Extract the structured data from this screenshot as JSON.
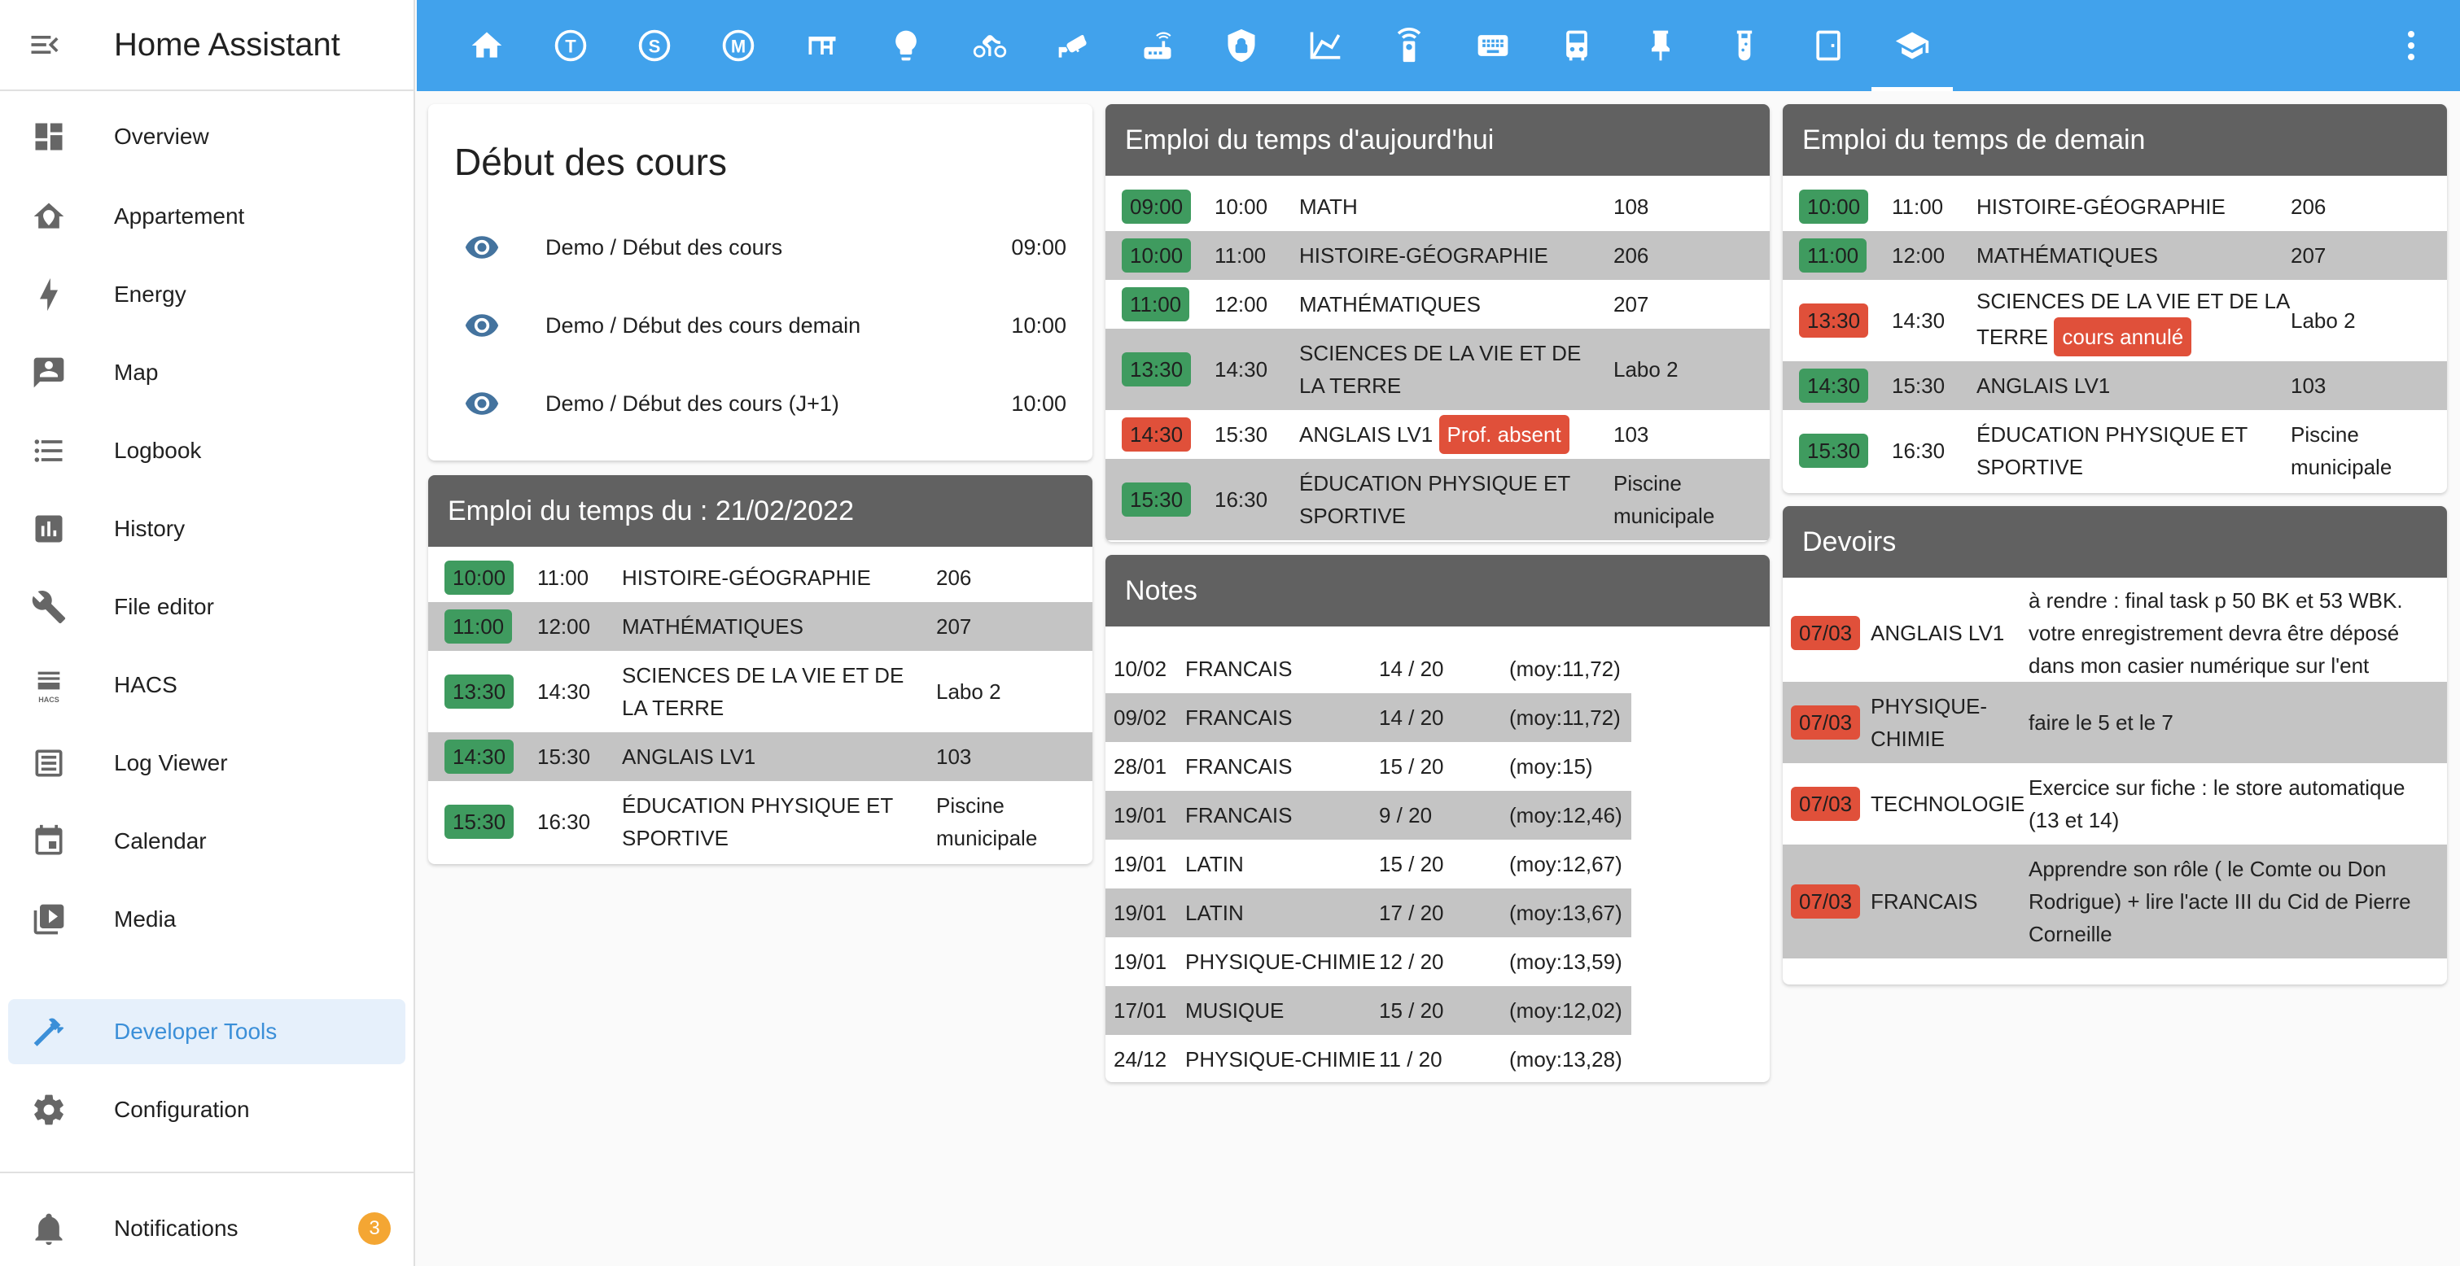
{
  "app_title": "Home Assistant",
  "sidebar": {
    "items": [
      {
        "label": "Overview",
        "icon": "overview-icon"
      },
      {
        "label": "Appartement",
        "icon": "home-icon"
      },
      {
        "label": "Energy",
        "icon": "lightning-icon"
      },
      {
        "label": "Map",
        "icon": "map-icon"
      },
      {
        "label": "Logbook",
        "icon": "logbook-icon"
      },
      {
        "label": "History",
        "icon": "history-icon"
      },
      {
        "label": "File editor",
        "icon": "wrench-icon"
      },
      {
        "label": "HACS",
        "icon": "hacs-icon"
      },
      {
        "label": "Log Viewer",
        "icon": "log-viewer-icon"
      },
      {
        "label": "Calendar",
        "icon": "calendar-icon"
      },
      {
        "label": "Media",
        "icon": "media-icon"
      },
      {
        "label": "Developer Tools",
        "icon": "hammer-icon"
      },
      {
        "label": "Configuration",
        "icon": "gear-icon"
      }
    ],
    "notifications_label": "Notifications",
    "notifications_count": "3",
    "hacs_small_label": "HACS"
  },
  "tabs": [
    "home",
    "tab-T",
    "tab-S",
    "tab-M",
    "desk",
    "lightbulb",
    "bicycle",
    "cctv",
    "router",
    "shield",
    "chart",
    "remote",
    "keyboard",
    "robot",
    "pin",
    "test-tube",
    "door",
    "school"
  ],
  "debut": {
    "title": "Début des cours",
    "entities": [
      {
        "name": "Demo / Début des cours",
        "value": "09:00"
      },
      {
        "name": "Demo / Début des cours demain",
        "value": "10:00"
      },
      {
        "name": "Demo / Début des cours (J+1)",
        "value": "10:00"
      }
    ]
  },
  "edt_date": {
    "title": "Emploi du temps du : 21/02/2022",
    "rows": [
      {
        "start": "10:00",
        "end": "11:00",
        "subject": [
          "HISTOIRE-GÉOGRAPHIE"
        ],
        "room": [
          "206"
        ]
      },
      {
        "start": "11:00",
        "end": "12:00",
        "subject": [
          "MATHÉMATIQUES"
        ],
        "room": [
          "207"
        ]
      },
      {
        "start": "13:30",
        "end": "14:30",
        "subject": [
          "SCIENCES DE LA VIE ET DE",
          "LA TERRE"
        ],
        "room": [
          "Labo 2"
        ]
      },
      {
        "start": "14:30",
        "end": "15:30",
        "subject": [
          "ANGLAIS LV1"
        ],
        "room": [
          "103"
        ]
      },
      {
        "start": "15:30",
        "end": "16:30",
        "subject": [
          "ÉDUCATION PHYSIQUE ET",
          "SPORTIVE"
        ],
        "room": [
          "Piscine",
          "municipale"
        ]
      }
    ]
  },
  "edt_today": {
    "title": "Emploi du temps d'aujourd'hui",
    "rows": [
      {
        "start": "09:00",
        "end": "10:00",
        "subject": [
          "MATH"
        ],
        "room": [
          "108"
        ]
      },
      {
        "start": "10:00",
        "end": "11:00",
        "subject": [
          "HISTOIRE-GÉOGRAPHIE"
        ],
        "room": [
          "206"
        ]
      },
      {
        "start": "11:00",
        "end": "12:00",
        "subject": [
          "MATHÉMATIQUES"
        ],
        "room": [
          "207"
        ]
      },
      {
        "start": "13:30",
        "end": "14:30",
        "subject": [
          "SCIENCES DE LA VIE ET DE",
          "LA TERRE"
        ],
        "room": [
          "Labo 2"
        ]
      },
      {
        "start": "14:30",
        "end": "15:30",
        "subject": [
          "ANGLAIS LV1"
        ],
        "tag": "Prof. absent",
        "room": [
          "103"
        ]
      },
      {
        "start": "15:30",
        "end": "16:30",
        "subject": [
          "ÉDUCATION PHYSIQUE ET",
          "SPORTIVE"
        ],
        "room": [
          "Piscine",
          "municipale"
        ]
      }
    ]
  },
  "edt_tomorrow": {
    "title": "Emploi du temps de demain",
    "rows": [
      {
        "start": "10:00",
        "end": "11:00",
        "subject": [
          "HISTOIRE-GÉOGRAPHIE"
        ],
        "room": [
          "206"
        ]
      },
      {
        "start": "11:00",
        "end": "12:00",
        "subject": [
          "MATHÉMATIQUES"
        ],
        "room": [
          "207"
        ]
      },
      {
        "start": "13:30",
        "end": "14:30",
        "subject": [
          "SCIENCES DE LA VIE ET DE LA",
          "TERRE"
        ],
        "tag": "cours annulé",
        "room": [
          "Labo 2"
        ]
      },
      {
        "start": "14:30",
        "end": "15:30",
        "subject": [
          "ANGLAIS LV1"
        ],
        "room": [
          "103"
        ]
      },
      {
        "start": "15:30",
        "end": "16:30",
        "subject": [
          "ÉDUCATION PHYSIQUE ET",
          "SPORTIVE"
        ],
        "room": [
          "Piscine",
          "municipale"
        ]
      }
    ]
  },
  "notes": {
    "title": "Notes",
    "rows": [
      {
        "date": "10/02",
        "subject": "FRANCAIS",
        "grade": "14 / 20",
        "avg": "(moy:11,72)"
      },
      {
        "date": "09/02",
        "subject": "FRANCAIS",
        "grade": "14 / 20",
        "avg": "(moy:11,72)"
      },
      {
        "date": "28/01",
        "subject": "FRANCAIS",
        "grade": "15 / 20",
        "avg": "(moy:15)"
      },
      {
        "date": "19/01",
        "subject": "FRANCAIS",
        "grade": "9 / 20",
        "avg": "(moy:12,46)"
      },
      {
        "date": "19/01",
        "subject": "LATIN",
        "grade": "15 / 20",
        "avg": "(moy:12,67)"
      },
      {
        "date": "19/01",
        "subject": "LATIN",
        "grade": "17 / 20",
        "avg": "(moy:13,67)"
      },
      {
        "date": "19/01",
        "subject": "PHYSIQUE-CHIMIE",
        "grade": "12 / 20",
        "avg": "(moy:13,59)"
      },
      {
        "date": "17/01",
        "subject": "MUSIQUE",
        "grade": "15 / 20",
        "avg": "(moy:12,02)"
      },
      {
        "date": "24/12",
        "subject": "PHYSIQUE-CHIMIE",
        "grade": "11 / 20",
        "avg": "(moy:13,28)"
      }
    ]
  },
  "devoirs": {
    "title": "Devoirs",
    "rows": [
      {
        "date": "07/03",
        "subject": [
          "ANGLAIS LV1"
        ],
        "text": [
          "à rendre : final task p 50 BK et 53 WBK.",
          "votre enregistrement devra être déposé",
          "dans mon casier numérique sur l'ent"
        ]
      },
      {
        "date": "07/03",
        "subject": [
          "PHYSIQUE-",
          "CHIMIE"
        ],
        "text": [
          "faire le 5 et le 7"
        ]
      },
      {
        "date": "07/03",
        "subject": [
          "TECHNOLOGIE"
        ],
        "text": [
          "Exercice sur fiche : le store automatique",
          "(13 et 14)"
        ]
      },
      {
        "date": "07/03",
        "subject": [
          "FRANCAIS"
        ],
        "text": [
          "Apprendre son rôle ( le Comte ou Don",
          "Rodrigue) + lire l'acte III du Cid de Pierre",
          "Corneille"
        ]
      }
    ]
  }
}
